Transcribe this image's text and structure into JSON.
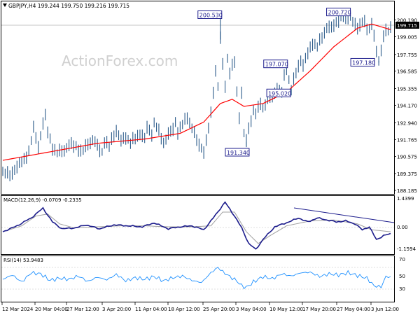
{
  "header": {
    "symbol_line": "GBPJPY,H4  199.244 199.750 199.216 199.715",
    "watermark": "ActionForex.com"
  },
  "colors": {
    "price_series": "#2b5b8a",
    "moving_average": "#ff0000",
    "macd_line": "#1c1c8c",
    "macd_signal": "#a0a0a0",
    "rsi_line": "#1e90ff",
    "label_box": "#1c1c8c",
    "trendline": "#1c1c8c"
  },
  "price_pane": {
    "current_price_label": "199.715",
    "y_ticks": [
      "200.190",
      "199.005",
      "197.755",
      "196.585",
      "195.355",
      "194.170",
      "192.940",
      "191.765",
      "190.575",
      "189.375",
      "188.185"
    ],
    "y_tick_values": [
      200.19,
      199.005,
      197.755,
      196.585,
      195.355,
      194.17,
      192.94,
      191.765,
      190.575,
      189.375,
      188.185
    ],
    "annotations": [
      {
        "text": "200.530",
        "value": 200.53
      },
      {
        "text": "200.720",
        "value": 200.72
      },
      {
        "text": "197.070",
        "value": 197.07
      },
      {
        "text": "195.020",
        "value": 195.02
      },
      {
        "text": "191.340",
        "value": 191.34
      },
      {
        "text": "197.180",
        "value": 197.18
      }
    ]
  },
  "macd_pane": {
    "title": "MACD(12,26,9) -0.0709 -0.2335",
    "y_ticks": [
      "1.4399",
      "0.00",
      "-1.1594"
    ]
  },
  "rsi_pane": {
    "title": "RSI(14) 53.9483",
    "y_ticks": [
      "70",
      "50",
      "30"
    ]
  },
  "x_axis": {
    "labels": [
      "12 Mar 2024",
      "20 Mar 04:00",
      "27 Mar 12:00",
      "3 Apr 20:00",
      "11 Apr 04:00",
      "18 Apr 12:00",
      "25 Apr 20:00",
      "3 May 04:00",
      "10 May 12:00",
      "17 May 20:00",
      "27 May 04:00",
      "3 Jun 12:00"
    ]
  },
  "chart_data": {
    "type": "line",
    "title": "GBPJPY,H4",
    "ylim": [
      188.185,
      200.8
    ],
    "price_keypoints": [
      [
        0,
        189.6
      ],
      [
        3,
        189.2
      ],
      [
        6,
        189.9
      ],
      [
        9,
        190.3
      ],
      [
        11,
        191.0
      ],
      [
        13,
        192.5
      ],
      [
        15,
        191.3
      ],
      [
        17,
        192.9
      ],
      [
        18,
        193.4
      ],
      [
        19,
        192.3
      ],
      [
        21,
        191.2
      ],
      [
        23,
        190.8
      ],
      [
        25,
        191.0
      ],
      [
        27,
        191.2
      ],
      [
        29,
        191.4
      ],
      [
        31,
        191.3
      ],
      [
        33,
        190.9
      ],
      [
        34,
        191.0
      ],
      [
        36,
        191.5
      ],
      [
        38,
        191.7
      ],
      [
        40,
        191.3
      ],
      [
        42,
        190.9
      ],
      [
        43,
        191.6
      ],
      [
        45,
        191.3
      ],
      [
        46,
        191.8
      ],
      [
        48,
        192.4
      ],
      [
        50,
        191.6
      ],
      [
        52,
        192.0
      ],
      [
        54,
        191.5
      ],
      [
        56,
        191.9
      ],
      [
        58,
        192.2
      ],
      [
        60,
        191.8
      ],
      [
        61,
        192.6
      ],
      [
        63,
        192.2
      ],
      [
        64,
        192.9
      ],
      [
        66,
        192.3
      ],
      [
        68,
        191.6
      ],
      [
        70,
        192.1
      ],
      [
        72,
        192.5
      ],
      [
        73,
        193.0
      ],
      [
        74,
        192.3
      ],
      [
        76,
        192.8
      ],
      [
        78,
        193.4
      ],
      [
        80,
        192.6
      ],
      [
        82,
        191.7
      ],
      [
        84,
        191.2
      ],
      [
        85,
        190.9
      ],
      [
        86,
        191.6
      ],
      [
        88,
        193.6
      ],
      [
        89,
        195.2
      ],
      [
        90,
        196.6
      ],
      [
        91,
        195.5
      ],
      [
        92,
        198.8
      ],
      [
        93,
        197.1
      ],
      [
        94,
        195.6
      ],
      [
        95,
        197.5
      ],
      [
        96,
        196.4
      ],
      [
        97,
        196.9
      ],
      [
        98,
        197.3
      ],
      [
        99,
        195.1
      ],
      [
        100,
        193.4
      ],
      [
        101,
        195.0
      ],
      [
        102,
        192.2
      ],
      [
        103,
        191.6
      ],
      [
        104,
        192.6
      ],
      [
        106,
        193.8
      ],
      [
        107,
        193.5
      ],
      [
        109,
        194.4
      ],
      [
        110,
        194.0
      ],
      [
        112,
        194.6
      ],
      [
        114,
        194.8
      ],
      [
        116,
        195.4
      ],
      [
        118,
        195.0
      ],
      [
        119,
        196.2
      ],
      [
        120,
        196.9
      ],
      [
        121,
        196.0
      ],
      [
        122,
        195.3
      ],
      [
        124,
        196.5
      ],
      [
        126,
        197.4
      ],
      [
        127,
        197.0
      ],
      [
        129,
        197.8
      ],
      [
        131,
        198.6
      ],
      [
        133,
        198.3
      ],
      [
        135,
        199.0
      ],
      [
        137,
        199.7
      ],
      [
        139,
        199.6
      ],
      [
        141,
        200.0
      ],
      [
        143,
        200.4
      ],
      [
        145,
        200.2
      ],
      [
        147,
        200.6
      ],
      [
        148,
        200.1
      ],
      [
        150,
        199.5
      ],
      [
        151,
        199.9
      ],
      [
        153,
        200.2
      ],
      [
        154,
        199.4
      ],
      [
        156,
        199.8
      ],
      [
        157,
        199.2
      ],
      [
        158,
        198.0
      ],
      [
        159,
        197.3
      ],
      [
        160,
        197.9
      ],
      [
        161,
        199.0
      ],
      [
        162,
        199.6
      ],
      [
        163,
        199.4
      ],
      [
        164,
        199.72
      ]
    ],
    "ma_keypoints": [
      [
        0,
        190.3
      ],
      [
        20,
        190.9
      ],
      [
        40,
        191.5
      ],
      [
        60,
        191.8
      ],
      [
        75,
        192.2
      ],
      [
        85,
        193.0
      ],
      [
        92,
        194.3
      ],
      [
        97,
        194.6
      ],
      [
        102,
        194.1
      ],
      [
        110,
        194.3
      ],
      [
        120,
        195.1
      ],
      [
        130,
        196.6
      ],
      [
        140,
        198.3
      ],
      [
        150,
        199.6
      ],
      [
        156,
        199.9
      ],
      [
        160,
        199.7
      ],
      [
        164,
        199.5
      ]
    ],
    "macd_keypoints": [
      [
        0,
        -0.2
      ],
      [
        6,
        0.1
      ],
      [
        12,
        0.5
      ],
      [
        17,
        1.0
      ],
      [
        21,
        0.3
      ],
      [
        25,
        -0.05
      ],
      [
        31,
        0.0
      ],
      [
        35,
        0.15
      ],
      [
        41,
        -0.05
      ],
      [
        47,
        0.15
      ],
      [
        53,
        0.1
      ],
      [
        59,
        0.05
      ],
      [
        64,
        0.25
      ],
      [
        70,
        -0.05
      ],
      [
        75,
        0.05
      ],
      [
        80,
        0.1
      ],
      [
        85,
        -0.1
      ],
      [
        89,
        0.5
      ],
      [
        94,
        1.3
      ],
      [
        98,
        0.6
      ],
      [
        101,
        0.0
      ],
      [
        104,
        -0.8
      ],
      [
        107,
        -1.1
      ],
      [
        110,
        -0.6
      ],
      [
        115,
        0.05
      ],
      [
        121,
        0.3
      ],
      [
        125,
        0.5
      ],
      [
        129,
        0.3
      ],
      [
        133,
        0.5
      ],
      [
        137,
        0.4
      ],
      [
        141,
        0.3
      ],
      [
        145,
        0.35
      ],
      [
        149,
        0.2
      ],
      [
        152,
        -0.1
      ],
      [
        155,
        0.05
      ],
      [
        158,
        -0.6
      ],
      [
        161,
        -0.4
      ],
      [
        164,
        -0.3
      ]
    ],
    "macd_signal_keypoints": [
      [
        0,
        -0.2
      ],
      [
        8,
        0.1
      ],
      [
        14,
        0.6
      ],
      [
        19,
        0.7
      ],
      [
        24,
        0.2
      ],
      [
        30,
        0.0
      ],
      [
        40,
        0.05
      ],
      [
        50,
        0.1
      ],
      [
        60,
        0.1
      ],
      [
        70,
        0.05
      ],
      [
        80,
        0.05
      ],
      [
        88,
        0.1
      ],
      [
        93,
        0.8
      ],
      [
        98,
        0.8
      ],
      [
        103,
        -0.2
      ],
      [
        108,
        -0.8
      ],
      [
        113,
        -0.4
      ],
      [
        120,
        0.1
      ],
      [
        130,
        0.35
      ],
      [
        140,
        0.4
      ],
      [
        150,
        0.2
      ],
      [
        156,
        -0.1
      ],
      [
        164,
        -0.2
      ]
    ],
    "rsi_keypoints": [
      [
        0,
        50
      ],
      [
        4,
        58
      ],
      [
        8,
        45
      ],
      [
        12,
        62
      ],
      [
        16,
        60
      ],
      [
        20,
        48
      ],
      [
        24,
        52
      ],
      [
        28,
        50
      ],
      [
        32,
        56
      ],
      [
        36,
        46
      ],
      [
        40,
        54
      ],
      [
        44,
        49
      ],
      [
        48,
        59
      ],
      [
        52,
        47
      ],
      [
        56,
        53
      ],
      [
        60,
        50
      ],
      [
        64,
        55
      ],
      [
        68,
        47
      ],
      [
        72,
        53
      ],
      [
        76,
        56
      ],
      [
        80,
        48
      ],
      [
        84,
        44
      ],
      [
        88,
        62
      ],
      [
        91,
        72
      ],
      [
        93,
        64
      ],
      [
        96,
        55
      ],
      [
        99,
        47
      ],
      [
        101,
        38
      ],
      [
        103,
        35
      ],
      [
        106,
        45
      ],
      [
        110,
        55
      ],
      [
        114,
        51
      ],
      [
        118,
        60
      ],
      [
        122,
        56
      ],
      [
        126,
        62
      ],
      [
        130,
        63
      ],
      [
        134,
        55
      ],
      [
        138,
        60
      ],
      [
        142,
        58
      ],
      [
        146,
        62
      ],
      [
        150,
        57
      ],
      [
        154,
        52
      ],
      [
        157,
        38
      ],
      [
        160,
        36
      ],
      [
        162,
        55
      ],
      [
        164,
        54
      ]
    ]
  }
}
